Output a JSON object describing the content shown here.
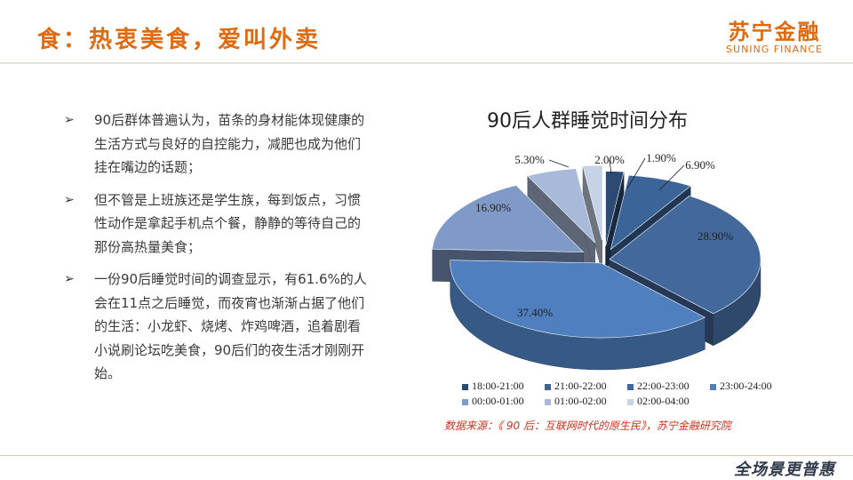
{
  "header": {
    "title": "食：热衷美食，爱叫外卖"
  },
  "logo": {
    "cn": "苏宁金融",
    "en": "SUNING FINANCE"
  },
  "bullets": [
    {
      "marker": "➢",
      "text": "90后群体普遍认为，苗条的身材能体现健康的生活方式与良好的自控能力，减肥也成为他们挂在嘴边的话题；"
    },
    {
      "marker": "➢",
      "text": "但不管是上班族还是学生族，每到饭点，习惯性动作是拿起手机点个餐，静静的等待自己的那份高热量美食；"
    },
    {
      "marker": "➢",
      "text": "一份90后睡觉时间的调查显示，有61.6%的人会在11点之后睡觉，而夜宵也渐渐占据了他们的生活：小龙虾、烧烤、炸鸡啤酒，追着剧看小说刷论坛吃美食，90后们的夜生活才刚刚开始。"
    }
  ],
  "chart_data": {
    "type": "pie",
    "title": "90后人群睡觉时间分布",
    "labels": [
      "18:00-21:00",
      "21:00-22:00",
      "22:00-23:00",
      "23:00-24:00",
      "00:00-01:00",
      "01:00-02:00",
      "02:00-04:00"
    ],
    "values": [
      1.9,
      6.9,
      28.9,
      37.4,
      16.9,
      5.3,
      2.0
    ],
    "value_labels": [
      "1.90%",
      "6.90%",
      "28.90%",
      "37.40%",
      "16.90%",
      "5.30%",
      "2.00%"
    ],
    "colors": [
      "#2c4a73",
      "#3b6499",
      "#43689c",
      "#4f7fbe",
      "#7f9ac6",
      "#a9b9d9",
      "#c6d2e6"
    ],
    "exploded": true,
    "style": "3d",
    "legend_position": "bottom"
  },
  "source": {
    "text": "数据来源：《 90 后：互联网时代的原生民》，苏宁金融研究院"
  },
  "footer": {
    "slogan": "全场景更普惠"
  }
}
